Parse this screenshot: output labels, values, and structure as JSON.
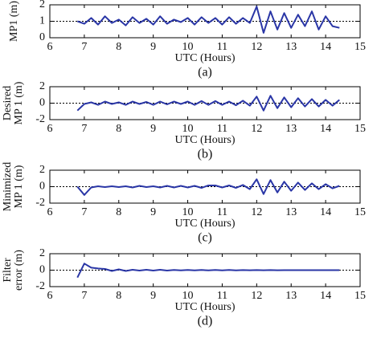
{
  "chart_data": [
    {
      "type": "line",
      "ylabel": [
        "MP1 (m)"
      ],
      "xlabel": "UTC (Hours)",
      "caption": "(a)",
      "color": "#2a36a6",
      "grid": true,
      "xlim": [
        6,
        15
      ],
      "xticks": [
        6,
        7,
        8,
        9,
        10,
        11,
        12,
        13,
        14,
        15
      ],
      "ylim": [
        0,
        2
      ],
      "yticks": [
        0,
        1,
        2
      ],
      "x": [
        6.8,
        7,
        7.2,
        7.4,
        7.6,
        7.8,
        8,
        8.2,
        8.4,
        8.6,
        8.8,
        9,
        9.2,
        9.4,
        9.6,
        9.8,
        10,
        10.2,
        10.4,
        10.6,
        10.8,
        11,
        11.2,
        11.4,
        11.6,
        11.8,
        12,
        12.2,
        12.4,
        12.6,
        12.8,
        13,
        13.2,
        13.4,
        13.6,
        13.8,
        14,
        14.2,
        14.4
      ],
      "values": [
        1.0,
        0.85,
        1.2,
        0.8,
        1.3,
        0.9,
        1.1,
        0.75,
        1.25,
        0.9,
        1.15,
        0.8,
        1.3,
        0.85,
        1.1,
        0.95,
        1.2,
        0.8,
        1.25,
        0.9,
        1.2,
        0.8,
        1.25,
        0.85,
        1.2,
        0.9,
        1.9,
        0.3,
        1.6,
        0.5,
        1.5,
        0.6,
        1.4,
        0.7,
        1.6,
        0.5,
        1.3,
        0.7,
        0.6
      ]
    },
    {
      "type": "line",
      "ylabel": [
        "Desired",
        "MP 1 (m)"
      ],
      "xlabel": "UTC (Hours)",
      "caption": "(b)",
      "color": "#2a36a6",
      "grid": true,
      "xlim": [
        6,
        15
      ],
      "xticks": [
        6,
        7,
        8,
        9,
        10,
        11,
        12,
        13,
        14,
        15
      ],
      "ylim": [
        -2,
        2
      ],
      "yticks": [
        -2,
        0,
        2
      ],
      "x": [
        6.8,
        7,
        7.2,
        7.4,
        7.6,
        7.8,
        8,
        8.2,
        8.4,
        8.6,
        8.8,
        9,
        9.2,
        9.4,
        9.6,
        9.8,
        10,
        10.2,
        10.4,
        10.6,
        10.8,
        11,
        11.2,
        11.4,
        11.6,
        11.8,
        12,
        12.2,
        12.4,
        12.6,
        12.8,
        13,
        13.2,
        13.4,
        13.6,
        13.8,
        14,
        14.2,
        14.4
      ],
      "values": [
        -0.9,
        -0.1,
        0.1,
        -0.2,
        0.2,
        -0.1,
        0.1,
        -0.2,
        0.2,
        -0.1,
        0.15,
        -0.2,
        0.2,
        -0.15,
        0.2,
        -0.1,
        0.2,
        -0.2,
        0.25,
        -0.2,
        0.25,
        -0.2,
        0.2,
        -0.25,
        0.3,
        -0.3,
        0.8,
        -0.9,
        0.9,
        -0.6,
        0.7,
        -0.5,
        0.6,
        -0.4,
        0.5,
        -0.4,
        0.4,
        -0.3,
        0.4
      ]
    },
    {
      "type": "line",
      "ylabel": [
        "Minimized",
        "MP 1 (m)"
      ],
      "xlabel": "UTC (Hours)",
      "caption": "(c)",
      "color": "#2a36a6",
      "grid": true,
      "xlim": [
        6,
        15
      ],
      "xticks": [
        6,
        7,
        8,
        9,
        10,
        11,
        12,
        13,
        14,
        15
      ],
      "ylim": [
        -2,
        2
      ],
      "yticks": [
        -2,
        0,
        2
      ],
      "x": [
        6.8,
        7,
        7.2,
        7.4,
        7.6,
        7.8,
        8,
        8.2,
        8.4,
        8.6,
        8.8,
        9,
        9.2,
        9.4,
        9.6,
        9.8,
        10,
        10.2,
        10.4,
        10.6,
        10.8,
        11,
        11.2,
        11.4,
        11.6,
        11.8,
        12,
        12.2,
        12.4,
        12.6,
        12.8,
        13,
        13.2,
        13.4,
        13.6,
        13.8,
        14,
        14.2,
        14.4
      ],
      "values": [
        0,
        -1.0,
        -0.1,
        0.05,
        -0.05,
        0.05,
        -0.05,
        0.05,
        -0.1,
        0.1,
        -0.05,
        0.05,
        -0.1,
        0.1,
        -0.1,
        0.1,
        -0.1,
        0.1,
        -0.15,
        0.15,
        0.15,
        -0.1,
        0.15,
        -0.15,
        0.2,
        -0.3,
        0.9,
        -0.9,
        0.8,
        -0.7,
        0.6,
        -0.5,
        0.5,
        -0.4,
        0.4,
        -0.3,
        0.3,
        -0.2,
        0.1
      ]
    },
    {
      "type": "line",
      "ylabel": [
        "Filter",
        "error (m)"
      ],
      "xlabel": "UTC (Hours)",
      "caption": "(d)",
      "color": "#2a36a6",
      "grid": true,
      "xlim": [
        6,
        15
      ],
      "xticks": [
        6,
        7,
        8,
        9,
        10,
        11,
        12,
        13,
        14,
        15
      ],
      "ylim": [
        -2,
        2
      ],
      "yticks": [
        -2,
        0,
        2
      ],
      "x": [
        6.8,
        7,
        7.2,
        7.4,
        7.6,
        7.8,
        8,
        8.2,
        8.4,
        8.6,
        8.8,
        9,
        9.2,
        9.4,
        9.6,
        9.8,
        10,
        10.2,
        10.4,
        10.6,
        10.8,
        11,
        11.2,
        11.4,
        11.6,
        11.8,
        12,
        12.2,
        12.4,
        12.6,
        12.8,
        13,
        13.2,
        13.4,
        13.6,
        13.8,
        14,
        14.2,
        14.4
      ],
      "values": [
        -0.9,
        0.8,
        0.3,
        0.2,
        0.15,
        -0.1,
        0.1,
        -0.1,
        0.05,
        -0.05,
        0.05,
        -0.05,
        0.05,
        -0.05,
        0.03,
        -0.03,
        0.03,
        -0.03,
        0.02,
        -0.02,
        0.02,
        -0.02,
        0.02,
        -0.02,
        0.01,
        -0.01,
        0.01,
        -0.01,
        0.01,
        -0.01,
        0,
        0,
        0,
        0,
        0,
        0,
        0,
        0,
        0
      ]
    }
  ]
}
